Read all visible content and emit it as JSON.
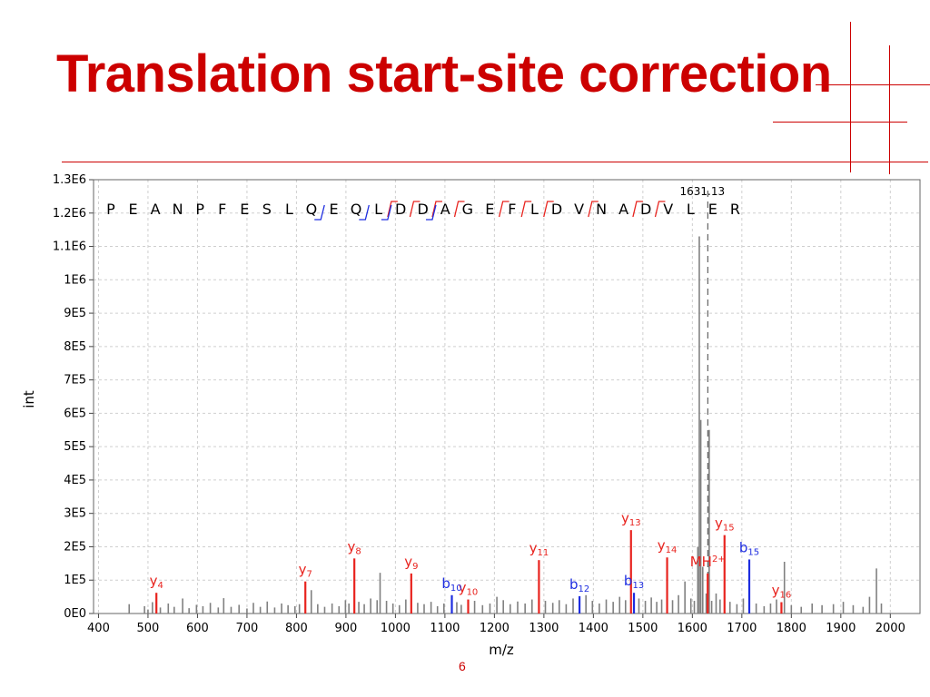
{
  "slide": {
    "title": "Translation start-site correction",
    "page_number": "6",
    "accent_color": "#cc0000"
  },
  "chart_data": {
    "type": "bar",
    "subtype": "ms/ms spectrum",
    "xlabel": "m/z",
    "ylabel": "int",
    "xlim": [
      390,
      2060
    ],
    "ylim": [
      0,
      1300000
    ],
    "x_ticks": [
      400,
      500,
      600,
      700,
      800,
      900,
      1000,
      1100,
      1200,
      1300,
      1400,
      1500,
      1600,
      1700,
      1800,
      1900,
      2000
    ],
    "x_tick_labels": [
      "400",
      "500",
      "600",
      "700",
      "800",
      "900",
      "1000",
      "1100",
      "1200",
      "1300",
      "1400",
      "1500",
      "1600",
      "1700",
      "1800",
      "1900",
      "2000"
    ],
    "y_ticks": [
      0,
      100000,
      200000,
      300000,
      400000,
      500000,
      600000,
      700000,
      800000,
      900000,
      1000000,
      1100000,
      1200000,
      1300000
    ],
    "y_tick_labels": [
      "0E0",
      "1E5",
      "2E5",
      "3E5",
      "4E5",
      "5E5",
      "6E5",
      "7E5",
      "8E5",
      "9E5",
      "1E6",
      "1.1E6",
      "1.2E6",
      "1.3E6"
    ],
    "grid": true,
    "precursor": {
      "mz": 1631.13,
      "label": "1631.13"
    },
    "peptide": [
      "P",
      "E",
      "A",
      "N",
      "P",
      "F",
      "E",
      "S",
      "L",
      "Q",
      "E",
      "Q",
      "L",
      "D",
      "D",
      "A",
      "G",
      "E",
      "F",
      "L",
      "D",
      "V",
      "N",
      "A",
      "D",
      "V",
      "L",
      "E",
      "R"
    ],
    "b_ion_positions": [
      10,
      12,
      13,
      15
    ],
    "y_ion_positions": [
      13,
      14,
      15,
      16,
      18,
      19,
      20,
      22,
      24,
      25
    ],
    "series": [
      {
        "name": "y ions",
        "color": "#e8231e",
        "peaks": [
          {
            "ion": "y",
            "index": "4",
            "mz": 517,
            "intensity": 62000
          },
          {
            "ion": "y",
            "index": "7",
            "mz": 818,
            "intensity": 96000
          },
          {
            "ion": "y",
            "index": "8",
            "mz": 917,
            "intensity": 165000
          },
          {
            "ion": "y",
            "index": "9",
            "mz": 1032,
            "intensity": 120000
          },
          {
            "ion": "y",
            "index": "10",
            "mz": 1147,
            "intensity": 42000
          },
          {
            "ion": "y",
            "index": "11",
            "mz": 1290,
            "intensity": 160000
          },
          {
            "ion": "y",
            "index": "13",
            "mz": 1476,
            "intensity": 250000
          },
          {
            "ion": "y",
            "index": "14",
            "mz": 1549,
            "intensity": 168000
          },
          {
            "ion": "MH",
            "index": "2+",
            "mz": 1631,
            "intensity": 120000
          },
          {
            "ion": "y",
            "index": "15",
            "mz": 1665,
            "intensity": 235000
          },
          {
            "ion": "y",
            "index": "16",
            "mz": 1780,
            "intensity": 34000
          }
        ]
      },
      {
        "name": "b ions",
        "color": "#1e2de0",
        "peaks": [
          {
            "ion": "b",
            "index": "10",
            "mz": 1114,
            "intensity": 55000
          },
          {
            "ion": "b",
            "index": "12",
            "mz": 1372,
            "intensity": 52000
          },
          {
            "ion": "b",
            "index": "13",
            "mz": 1482,
            "intensity": 62000
          },
          {
            "ion": "b",
            "index": "15",
            "mz": 1715,
            "intensity": 162000
          }
        ]
      },
      {
        "name": "unassigned",
        "color": "#808080",
        "peaks": [
          {
            "mz": 462,
            "intensity": 28000
          },
          {
            "mz": 493,
            "intensity": 22000
          },
          {
            "mz": 500,
            "intensity": 12000
          },
          {
            "mz": 509,
            "intensity": 34000
          },
          {
            "mz": 525,
            "intensity": 18000
          },
          {
            "mz": 541,
            "intensity": 30000
          },
          {
            "mz": 553,
            "intensity": 20000
          },
          {
            "mz": 570,
            "intensity": 45000
          },
          {
            "mz": 583,
            "intensity": 16000
          },
          {
            "mz": 598,
            "intensity": 26000
          },
          {
            "mz": 611,
            "intensity": 22000
          },
          {
            "mz": 626,
            "intensity": 32000
          },
          {
            "mz": 642,
            "intensity": 18000
          },
          {
            "mz": 653,
            "intensity": 46000
          },
          {
            "mz": 668,
            "intensity": 20000
          },
          {
            "mz": 684,
            "intensity": 26000
          },
          {
            "mz": 700,
            "intensity": 15000
          },
          {
            "mz": 713,
            "intensity": 32000
          },
          {
            "mz": 727,
            "intensity": 20000
          },
          {
            "mz": 741,
            "intensity": 36000
          },
          {
            "mz": 756,
            "intensity": 18000
          },
          {
            "mz": 770,
            "intensity": 30000
          },
          {
            "mz": 783,
            "intensity": 25000
          },
          {
            "mz": 797,
            "intensity": 22000
          },
          {
            "mz": 806,
            "intensity": 28000
          },
          {
            "mz": 830,
            "intensity": 70000
          },
          {
            "mz": 843,
            "intensity": 28000
          },
          {
            "mz": 857,
            "intensity": 20000
          },
          {
            "mz": 872,
            "intensity": 30000
          },
          {
            "mz": 886,
            "intensity": 22000
          },
          {
            "mz": 899,
            "intensity": 40000
          },
          {
            "mz": 906,
            "intensity": 30000
          },
          {
            "mz": 926,
            "intensity": 35000
          },
          {
            "mz": 937,
            "intensity": 28000
          },
          {
            "mz": 950,
            "intensity": 45000
          },
          {
            "mz": 963,
            "intensity": 40000
          },
          {
            "mz": 969,
            "intensity": 122000
          },
          {
            "mz": 982,
            "intensity": 38000
          },
          {
            "mz": 995,
            "intensity": 30000
          },
          {
            "mz": 1008,
            "intensity": 25000
          },
          {
            "mz": 1021,
            "intensity": 42000
          },
          {
            "mz": 1045,
            "intensity": 32000
          },
          {
            "mz": 1058,
            "intensity": 28000
          },
          {
            "mz": 1072,
            "intensity": 35000
          },
          {
            "mz": 1085,
            "intensity": 22000
          },
          {
            "mz": 1098,
            "intensity": 30000
          },
          {
            "mz": 1124,
            "intensity": 34000
          },
          {
            "mz": 1133,
            "intensity": 26000
          },
          {
            "mz": 1160,
            "intensity": 38000
          },
          {
            "mz": 1176,
            "intensity": 25000
          },
          {
            "mz": 1191,
            "intensity": 30000
          },
          {
            "mz": 1205,
            "intensity": 50000
          },
          {
            "mz": 1218,
            "intensity": 40000
          },
          {
            "mz": 1232,
            "intensity": 28000
          },
          {
            "mz": 1247,
            "intensity": 36000
          },
          {
            "mz": 1262,
            "intensity": 30000
          },
          {
            "mz": 1276,
            "intensity": 42000
          },
          {
            "mz": 1303,
            "intensity": 38000
          },
          {
            "mz": 1318,
            "intensity": 32000
          },
          {
            "mz": 1331,
            "intensity": 40000
          },
          {
            "mz": 1345,
            "intensity": 28000
          },
          {
            "mz": 1359,
            "intensity": 45000
          },
          {
            "mz": 1385,
            "intensity": 55000
          },
          {
            "mz": 1398,
            "intensity": 38000
          },
          {
            "mz": 1412,
            "intensity": 30000
          },
          {
            "mz": 1426,
            "intensity": 42000
          },
          {
            "mz": 1440,
            "intensity": 35000
          },
          {
            "mz": 1453,
            "intensity": 50000
          },
          {
            "mz": 1465,
            "intensity": 40000
          },
          {
            "mz": 1492,
            "intensity": 45000
          },
          {
            "mz": 1505,
            "intensity": 38000
          },
          {
            "mz": 1517,
            "intensity": 48000
          },
          {
            "mz": 1528,
            "intensity": 35000
          },
          {
            "mz": 1538,
            "intensity": 42000
          },
          {
            "mz": 1560,
            "intensity": 40000
          },
          {
            "mz": 1572,
            "intensity": 55000
          },
          {
            "mz": 1585,
            "intensity": 96000
          },
          {
            "mz": 1597,
            "intensity": 45000
          },
          {
            "mz": 1604,
            "intensity": 38000
          },
          {
            "mz": 1611,
            "intensity": 200000
          },
          {
            "mz": 1614,
            "intensity": 1130000
          },
          {
            "mz": 1617,
            "intensity": 580000
          },
          {
            "mz": 1621,
            "intensity": 140000
          },
          {
            "mz": 1628,
            "intensity": 60000
          },
          {
            "mz": 1634,
            "intensity": 550000
          },
          {
            "mz": 1639,
            "intensity": 38000
          },
          {
            "mz": 1648,
            "intensity": 60000
          },
          {
            "mz": 1656,
            "intensity": 42000
          },
          {
            "mz": 1676,
            "intensity": 35000
          },
          {
            "mz": 1690,
            "intensity": 28000
          },
          {
            "mz": 1703,
            "intensity": 45000
          },
          {
            "mz": 1729,
            "intensity": 30000
          },
          {
            "mz": 1745,
            "intensity": 22000
          },
          {
            "mz": 1758,
            "intensity": 30000
          },
          {
            "mz": 1770,
            "intensity": 42000
          },
          {
            "mz": 1786,
            "intensity": 155000
          },
          {
            "mz": 1800,
            "intensity": 25000
          },
          {
            "mz": 1820,
            "intensity": 20000
          },
          {
            "mz": 1842,
            "intensity": 30000
          },
          {
            "mz": 1862,
            "intensity": 25000
          },
          {
            "mz": 1885,
            "intensity": 28000
          },
          {
            "mz": 1905,
            "intensity": 35000
          },
          {
            "mz": 1925,
            "intensity": 25000
          },
          {
            "mz": 1945,
            "intensity": 20000
          },
          {
            "mz": 1958,
            "intensity": 50000
          },
          {
            "mz": 1972,
            "intensity": 135000
          },
          {
            "mz": 1982,
            "intensity": 30000
          }
        ]
      }
    ]
  }
}
